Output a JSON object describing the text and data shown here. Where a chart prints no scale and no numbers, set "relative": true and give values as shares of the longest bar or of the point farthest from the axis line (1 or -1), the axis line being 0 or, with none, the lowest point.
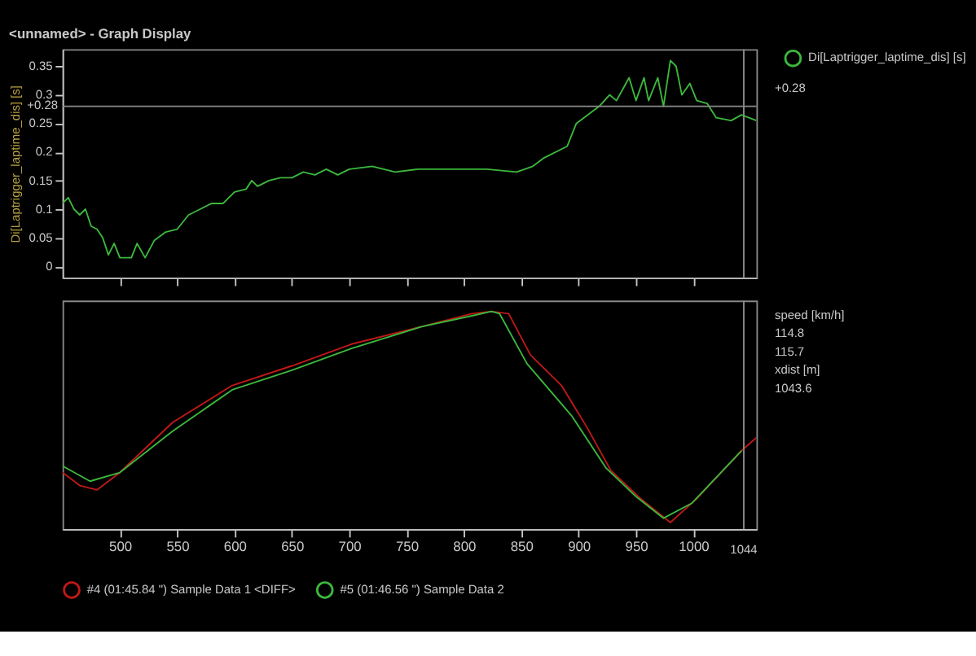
{
  "chart_data": [
    {
      "type": "line",
      "title": "<unnamed> - Graph Display",
      "ylabel": "Di[Laptrigger_laptime_dis] [s]",
      "xlim": [
        450,
        1055
      ],
      "ylim": [
        -0.02,
        0.38
      ],
      "xticks": [
        500,
        550,
        600,
        650,
        700,
        750,
        800,
        850,
        900,
        950,
        1000
      ],
      "yticks": [
        0,
        0.05,
        0.1,
        0.15,
        0.2,
        0.25,
        0.3,
        0.35
      ],
      "tick_labels": "y",
      "legend": "right",
      "series": [
        {
          "name": "Di[Laptrigger_laptime_dis] [s]",
          "color": "#3cb83c",
          "x": [
            450,
            455,
            460,
            465,
            470,
            475,
            480,
            485,
            490,
            495,
            500,
            510,
            515,
            522,
            530,
            540,
            550,
            560,
            570,
            580,
            590,
            600,
            610,
            615,
            620,
            630,
            640,
            650,
            660,
            670,
            680,
            690,
            700,
            720,
            740,
            760,
            790,
            820,
            846,
            860,
            870,
            890,
            898,
            918,
            927,
            933,
            944,
            950,
            957,
            961,
            969,
            974,
            980,
            985,
            990,
            997,
            1003,
            1012,
            1020,
            1033,
            1042,
            1055
          ],
          "values": [
            0.11,
            0.12,
            0.1,
            0.09,
            0.1,
            0.07,
            0.065,
            0.05,
            0.02,
            0.04,
            0.015,
            0.015,
            0.04,
            0.015,
            0.045,
            0.06,
            0.065,
            0.09,
            0.1,
            0.11,
            0.11,
            0.13,
            0.135,
            0.15,
            0.14,
            0.15,
            0.155,
            0.155,
            0.165,
            0.16,
            0.17,
            0.16,
            0.17,
            0.175,
            0.165,
            0.17,
            0.17,
            0.17,
            0.165,
            0.175,
            0.19,
            0.21,
            0.25,
            0.28,
            0.3,
            0.29,
            0.33,
            0.29,
            0.33,
            0.29,
            0.33,
            0.28,
            0.36,
            0.35,
            0.3,
            0.32,
            0.29,
            0.285,
            0.26,
            0.255,
            0.265,
            0.255
          ]
        }
      ],
      "ref_lines": [
        {
          "axis": "y",
          "value": 0.28,
          "label": "+0.28"
        },
        {
          "axis": "x",
          "value": 1044
        }
      ],
      "annotations": [
        "+0.28"
      ]
    },
    {
      "type": "line",
      "relative": true,
      "xlim": [
        450,
        1055
      ],
      "xticks": [
        500,
        550,
        600,
        650,
        700,
        750,
        800,
        850,
        900,
        950,
        1000
      ],
      "tick_labels": "x",
      "legend": "bottom",
      "series": [
        {
          "name": "#4 (01:45.84 \") Sample Data 1 <DIFF>",
          "color": "#c01818",
          "x": [
            450,
            465,
            480,
            500,
            546,
            598,
            650,
            702,
            763,
            807,
            824,
            839,
            858,
            885,
            907,
            928,
            954,
            980,
            1003,
            1042,
            1055
          ],
          "values": [
            0.26,
            0.2,
            0.18,
            0.26,
            0.49,
            0.66,
            0.75,
            0.85,
            0.93,
            0.99,
            1.0,
            0.99,
            0.8,
            0.66,
            0.47,
            0.27,
            0.14,
            0.03,
            0.14,
            0.36,
            0.42
          ]
        },
        {
          "name": "#5 (01:46.56 \") Sample Data 2",
          "color": "#3cb83c",
          "x": [
            450,
            474,
            500,
            546,
            598,
            650,
            702,
            763,
            807,
            824,
            831,
            855,
            894,
            924,
            950,
            974,
            999,
            1042
          ],
          "values": [
            0.29,
            0.22,
            0.26,
            0.45,
            0.64,
            0.73,
            0.83,
            0.93,
            0.98,
            1.0,
            0.99,
            0.76,
            0.52,
            0.28,
            0.15,
            0.05,
            0.12,
            0.36
          ]
        }
      ],
      "ref_lines": [
        {
          "axis": "x",
          "value": 1044,
          "label": "1044"
        }
      ],
      "annotations": [
        "speed [km/h]",
        "114.8",
        "115.7",
        "xdist [m]",
        "1043.6"
      ]
    }
  ]
}
